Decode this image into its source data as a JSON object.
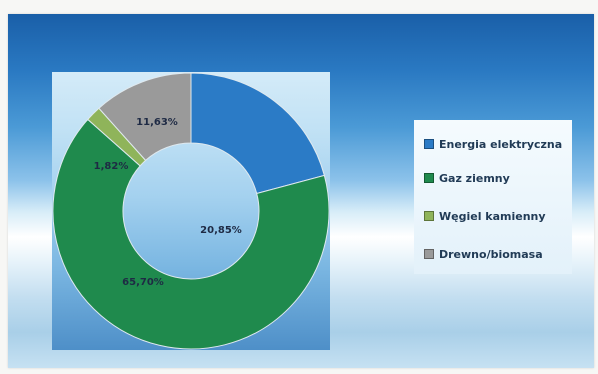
{
  "chart_data": {
    "type": "pie",
    "donut": true,
    "categories": [
      "Energia elektryczna",
      "Gaz ziemny",
      "Węgiel kamienny",
      "Drewno/biomasa"
    ],
    "values": [
      20.85,
      65.7,
      1.82,
      11.63
    ],
    "labels": [
      "20,85%",
      "65,70%",
      "1,82%",
      "11,63%"
    ],
    "colors": [
      "#2b7bc6",
      "#1f8a4d",
      "#8fb45a",
      "#9a9a9a"
    ],
    "title": "",
    "legend_position": "right"
  },
  "legend": {
    "items": [
      {
        "label": "Energia elektryczna",
        "color": "#2b7bc6"
      },
      {
        "label": "Gaz ziemny",
        "color": "#1f8a4d"
      },
      {
        "label": "Węgiel kamienny",
        "color": "#8fb45a"
      },
      {
        "label": "Drewno/biomasa",
        "color": "#9a9a9a"
      }
    ]
  }
}
